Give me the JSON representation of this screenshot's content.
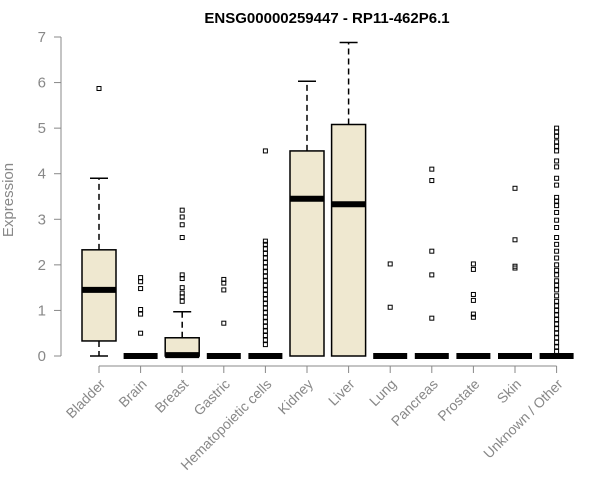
{
  "chart_data": {
    "type": "boxplot",
    "title": "ENSG00000259447 - RP11-462P6.1",
    "ylabel": "Expression",
    "xlabel": "",
    "ylim": [
      0,
      7
    ],
    "yticks": [
      0,
      1,
      2,
      3,
      4,
      5,
      6,
      7
    ],
    "box_fill": "#efe8d0",
    "categories": [
      "Bladder",
      "Brain",
      "Breast",
      "Gastric",
      "Hematopoietic cells",
      "Kidney",
      "Liver",
      "Lung",
      "Pancreas",
      "Prostate",
      "Skin",
      "Unknown / Other"
    ],
    "boxes": [
      {
        "category": "Bladder",
        "whisker_low": 0.0,
        "q1": 0.33,
        "median": 1.45,
        "q3": 2.33,
        "whisker_high": 3.9,
        "outliers": [
          5.87
        ]
      },
      {
        "category": "Brain",
        "whisker_low": 0,
        "q1": 0,
        "median": 0,
        "q3": 0,
        "whisker_high": 0,
        "outliers": [
          1.72,
          1.63,
          1.48,
          1.02,
          0.92,
          0.5
        ]
      },
      {
        "category": "Breast",
        "whisker_low": 0,
        "q1": 0,
        "median": 0.02,
        "q3": 0.4,
        "whisker_high": 0.97,
        "outliers": [
          3.2,
          3.05,
          2.88,
          2.6,
          1.78,
          1.7,
          1.5,
          1.38,
          1.3,
          1.2
        ]
      },
      {
        "category": "Gastric",
        "whisker_low": 0,
        "q1": 0,
        "median": 0,
        "q3": 0,
        "whisker_high": 0,
        "outliers": [
          1.68,
          1.6,
          1.45,
          0.72
        ]
      },
      {
        "category": "Hematopoietic cells",
        "whisker_low": 0,
        "q1": 0,
        "median": 0,
        "q3": 0,
        "whisker_high": 0,
        "outliers": [
          4.5,
          2.52,
          2.45,
          2.35,
          2.25,
          2.15,
          2.05,
          1.95,
          1.85,
          1.75,
          1.65,
          1.55,
          1.45,
          1.35,
          1.25,
          1.15,
          1.05,
          0.95,
          0.85,
          0.75,
          0.65,
          0.55,
          0.45,
          0.35,
          0.25
        ]
      },
      {
        "category": "Kidney",
        "whisker_low": 0,
        "q1": 0,
        "median": 3.45,
        "q3": 4.5,
        "whisker_high": 6.03,
        "outliers": []
      },
      {
        "category": "Liver",
        "whisker_low": 0,
        "q1": 0,
        "median": 3.33,
        "q3": 5.08,
        "whisker_high": 6.88,
        "outliers": []
      },
      {
        "category": "Lung",
        "whisker_low": 0,
        "q1": 0,
        "median": 0,
        "q3": 0,
        "whisker_high": 0,
        "outliers": [
          2.02,
          1.07
        ]
      },
      {
        "category": "Pancreas",
        "whisker_low": 0,
        "q1": 0,
        "median": 0,
        "q3": 0,
        "whisker_high": 0,
        "outliers": [
          4.1,
          3.85,
          2.3,
          1.78,
          0.83
        ]
      },
      {
        "category": "Prostate",
        "whisker_low": 0,
        "q1": 0,
        "median": 0,
        "q3": 0,
        "whisker_high": 0,
        "outliers": [
          2.02,
          1.9,
          1.35,
          1.22,
          0.92,
          0.85
        ]
      },
      {
        "category": "Skin",
        "whisker_low": 0,
        "q1": 0,
        "median": 0,
        "q3": 0,
        "whisker_high": 0,
        "outliers": [
          3.68,
          2.55,
          1.97,
          1.93
        ]
      },
      {
        "category": "Unknown / Other",
        "whisker_low": 0,
        "q1": 0,
        "median": 0,
        "q3": 0,
        "whisker_high": 0,
        "outliers": [
          5.0,
          4.92,
          4.82,
          4.7,
          4.6,
          4.5,
          4.28,
          4.15,
          3.9,
          3.75,
          3.48,
          3.4,
          3.3,
          3.15,
          2.98,
          2.82,
          2.6,
          2.45,
          2.3,
          2.15,
          2.0,
          1.88,
          1.78,
          1.65,
          1.55,
          1.45,
          1.32,
          1.2,
          1.1,
          1.0,
          0.9,
          0.8,
          0.7,
          0.6,
          0.5,
          0.4,
          0.3,
          0.2,
          0.1
        ]
      }
    ]
  }
}
